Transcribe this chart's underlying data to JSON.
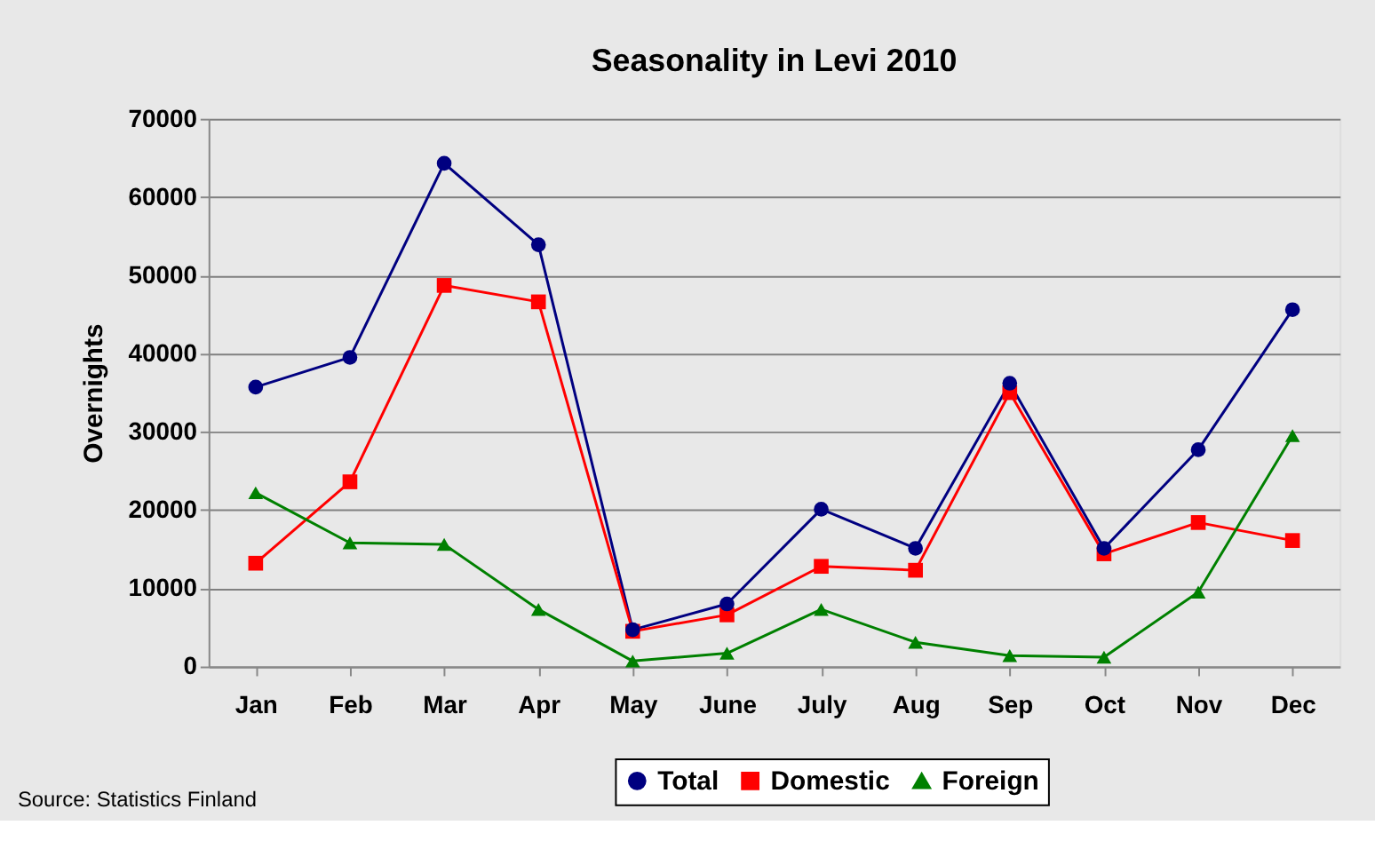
{
  "chart_data": {
    "type": "line",
    "title": "Seasonality in Levi 2010",
    "ylabel": "Overnights",
    "categories": [
      "Jan",
      "Feb",
      "Mar",
      "Apr",
      "May",
      "June",
      "July",
      "Aug",
      "Sep",
      "Oct",
      "Nov",
      "Dec"
    ],
    "series": [
      {
        "name": "Total",
        "color": "#000080",
        "marker": "circle",
        "values": [
          35700,
          39500,
          64300,
          53900,
          4700,
          8000,
          20100,
          15100,
          36200,
          15100,
          27700,
          45600
        ]
      },
      {
        "name": "Domestic",
        "color": "#ff0000",
        "marker": "square",
        "values": [
          13200,
          23600,
          48700,
          46600,
          4500,
          6600,
          12800,
          12300,
          35000,
          14400,
          18400,
          16100
        ]
      },
      {
        "name": "Foreign",
        "color": "#008000",
        "marker": "triangle",
        "values": [
          22200,
          15800,
          15600,
          7300,
          700,
          1700,
          7300,
          3100,
          1400,
          1200,
          9500,
          29500
        ]
      }
    ],
    "ylim": [
      0,
      70000
    ],
    "yticks": [
      0,
      10000,
      20000,
      30000,
      40000,
      50000,
      60000,
      70000
    ],
    "grid": "y",
    "legend": "bottom",
    "line_style": "solid",
    "annotations": [
      "Source: Statistics Finland"
    ]
  }
}
